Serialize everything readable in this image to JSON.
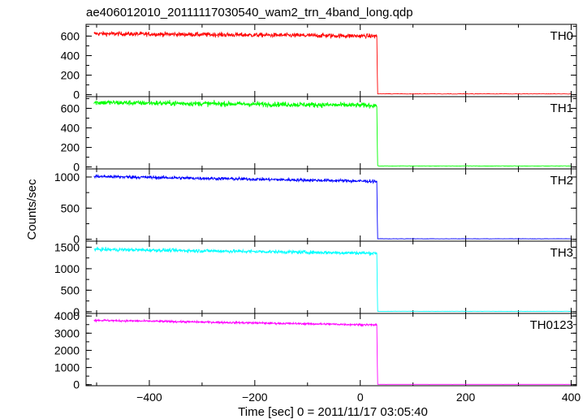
{
  "title": "ae406012010_20111117030540_wam2_trn_4band_long.qdp",
  "chart_data": {
    "type": "line",
    "title": "ae406012010_20111117030540_wam2_trn_4band_long.qdp",
    "xlabel": "Time [sec] 0 = 2011/11/17 03:05:40",
    "ylabel": "Counts/sec",
    "xlim": [
      -520,
      410
    ],
    "x_ticks": [
      "−400",
      "−200",
      "0",
      "200",
      "400"
    ],
    "x_tick_values": [
      -400,
      -200,
      0,
      200,
      400
    ],
    "drop_time": 32,
    "panels": [
      {
        "name": "TH0",
        "color": "#ff0000",
        "ylim": [
          -20,
          720
        ],
        "yticks": [
          0,
          200,
          400,
          600
        ],
        "level_start": 625,
        "level_end": 600,
        "noise": 22,
        "after": 8
      },
      {
        "name": "TH1",
        "color": "#00ff00",
        "ylim": [
          -20,
          720
        ],
        "yticks": [
          0,
          200,
          400,
          600
        ],
        "level_start": 660,
        "level_end": 630,
        "noise": 25,
        "after": 10
      },
      {
        "name": "TH2",
        "color": "#0000ff",
        "ylim": [
          -30,
          1130
        ],
        "yticks": [
          0,
          500,
          1000
        ],
        "level_start": 1010,
        "level_end": 930,
        "noise": 25,
        "after": 8
      },
      {
        "name": "TH3",
        "color": "#00ffff",
        "ylim": [
          -40,
          1640
        ],
        "yticks": [
          0,
          500,
          1000,
          1500
        ],
        "level_start": 1450,
        "level_end": 1360,
        "noise": 40,
        "after": 10
      },
      {
        "name": "TH0123",
        "color": "#ff00ff",
        "ylim": [
          -60,
          4150
        ],
        "yticks": [
          0,
          1000,
          2000,
          3000,
          4000
        ],
        "level_start": 3750,
        "level_end": 3480,
        "noise": 55,
        "after": 20
      }
    ]
  }
}
